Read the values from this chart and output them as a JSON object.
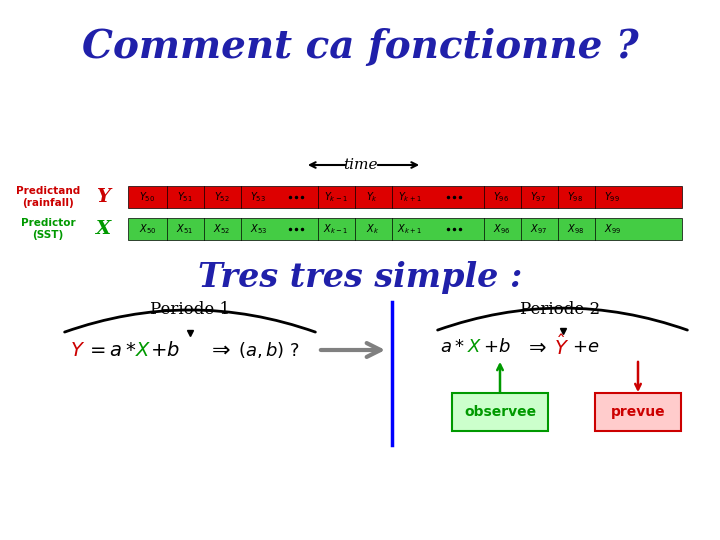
{
  "title": "Comment ca fonctionne ?",
  "title_color": "#2020AA",
  "title_fontsize": 28,
  "bg_color": "#FFFFFF",
  "time_label": "time",
  "predictand_label": "Predictand\n(rainfall)",
  "predictand_color": "#CC0000",
  "predictor_label": "Predictor\n(SST)",
  "predictor_color": "#009900",
  "Y_letter": "Y",
  "X_letter": "X",
  "row_Y_color": "#DD0000",
  "row_X_color": "#44CC44",
  "subtitle": "Tres tres simple :",
  "subtitle_color": "#2020AA",
  "subtitle_fontsize": 24,
  "periode1": "Periode 1",
  "periode2": "Periode 2",
  "eq1_Y_color": "#CC0000",
  "eq1_X_color": "#009900",
  "observee_label": "observee",
  "observee_color": "#009900",
  "observee_box_color": "#CCFFCC",
  "prevue_label": "prevue",
  "prevue_color": "#CC0000",
  "prevue_box_color": "#FFCCCC"
}
